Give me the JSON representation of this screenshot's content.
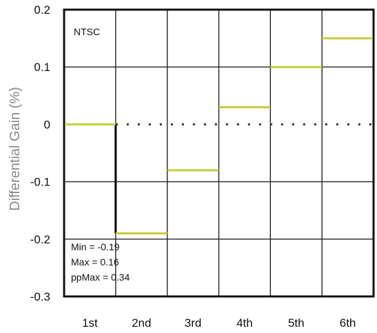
{
  "chart_data": {
    "type": "line",
    "ylabel": "Differential Gain (%)",
    "xlabel": "",
    "categories": [
      "1st",
      "2nd",
      "3rd",
      "4th",
      "5th",
      "6th"
    ],
    "ylim": [
      -0.3,
      0.2
    ],
    "yticks": [
      0.2,
      0.1,
      0,
      -0.1,
      -0.2,
      -0.3
    ],
    "ytick_labels": [
      "0.2",
      "0.1",
      "0",
      "-0.1",
      "-0.2",
      "-0.3"
    ],
    "series": [
      {
        "values": [
          0,
          -0.19,
          -0.08,
          0.03,
          0.1,
          0.15
        ],
        "color": "#c8cc3a"
      }
    ],
    "zero_reference": {
      "value": 0,
      "style": "dotted",
      "color": "#333333"
    },
    "grid": true,
    "annotations": {
      "standard": "NTSC",
      "stats": [
        "Min = -0.19",
        "Max = 0.16",
        "ppMax = 0.34"
      ]
    }
  }
}
